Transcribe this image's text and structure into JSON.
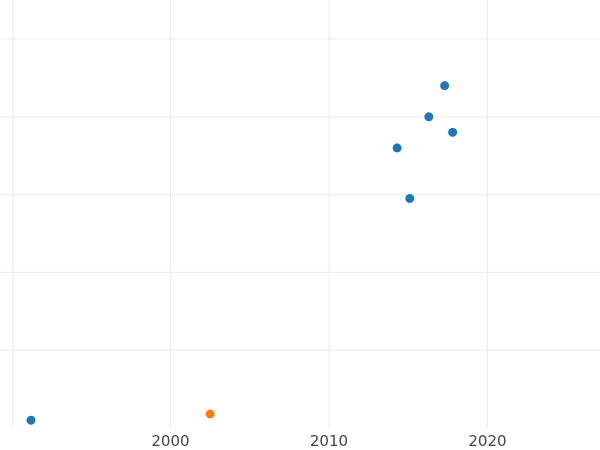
{
  "chart_data": {
    "type": "scatter",
    "title": "",
    "xlabel": "",
    "ylabel": "",
    "xlim": [
      1990,
      2027
    ],
    "ylim": [
      0,
      5.5
    ],
    "x_ticks": [
      2000,
      2010,
      2020
    ],
    "x_tick_labels": [
      "2000",
      "2010",
      "2020"
    ],
    "y_gridlines": [
      1,
      2,
      3,
      4,
      5
    ],
    "grid": true,
    "legend": "none",
    "series": [
      {
        "color": "#1f77b4",
        "points": [
          {
            "x": 1991.2,
            "y": 0.1
          },
          {
            "x": 2014.3,
            "y": 3.6
          },
          {
            "x": 2015.1,
            "y": 2.95
          },
          {
            "x": 2016.3,
            "y": 4.0
          },
          {
            "x": 2017.3,
            "y": 4.4
          },
          {
            "x": 2017.8,
            "y": 3.8
          }
        ]
      },
      {
        "color": "#ff7f0e",
        "points": [
          {
            "x": 2002.5,
            "y": 0.18
          }
        ]
      }
    ]
  }
}
